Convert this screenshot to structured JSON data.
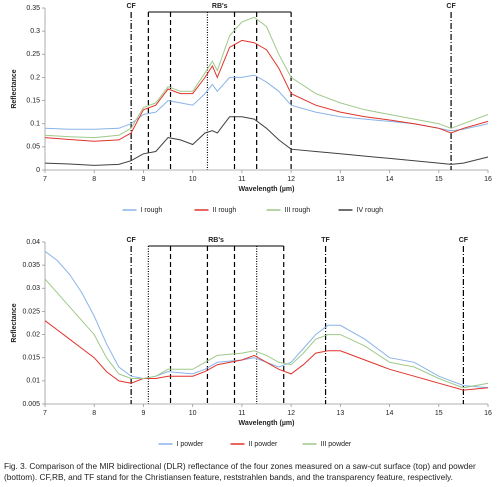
{
  "chart_data": [
    {
      "type": "line",
      "xlabel": "Wavelength (µm)",
      "ylabel": "Reflectance",
      "x": [
        7,
        7.5,
        8,
        8.5,
        8.75,
        9,
        9.25,
        9.5,
        9.75,
        10,
        10.25,
        10.4,
        10.5,
        10.75,
        11,
        11.25,
        11.5,
        11.75,
        12,
        12.5,
        13,
        13.5,
        14,
        14.5,
        15,
        15.25,
        15.5,
        16
      ],
      "xlim": [
        7,
        16
      ],
      "xticks": [
        7,
        8,
        9,
        10,
        11,
        12,
        13,
        14,
        15,
        16
      ],
      "ylim": [
        0,
        0.35
      ],
      "yticks": [
        0,
        0.05,
        0.1,
        0.15,
        0.2,
        0.25,
        0.3,
        0.35
      ],
      "series": [
        {
          "name": "I rough",
          "color": "#8ab4e8",
          "values": [
            0.09,
            0.088,
            0.088,
            0.09,
            0.1,
            0.12,
            0.125,
            0.15,
            0.145,
            0.14,
            0.165,
            0.185,
            0.17,
            0.2,
            0.2,
            0.205,
            0.19,
            0.17,
            0.14,
            0.125,
            0.115,
            0.11,
            0.105,
            0.1,
            0.09,
            0.085,
            0.088,
            0.1
          ]
        },
        {
          "name": "II rough",
          "color": "#e0342a",
          "values": [
            0.07,
            0.066,
            0.062,
            0.065,
            0.08,
            0.13,
            0.14,
            0.175,
            0.165,
            0.165,
            0.2,
            0.225,
            0.2,
            0.265,
            0.28,
            0.275,
            0.26,
            0.22,
            0.165,
            0.14,
            0.125,
            0.115,
            0.108,
            0.1,
            0.09,
            0.08,
            0.09,
            0.105
          ]
        },
        {
          "name": "III rough",
          "color": "#9fc98a",
          "values": [
            0.075,
            0.072,
            0.07,
            0.075,
            0.09,
            0.135,
            0.145,
            0.18,
            0.17,
            0.17,
            0.21,
            0.235,
            0.215,
            0.29,
            0.32,
            0.33,
            0.31,
            0.25,
            0.2,
            0.165,
            0.145,
            0.13,
            0.12,
            0.11,
            0.1,
            0.09,
            0.1,
            0.12
          ]
        },
        {
          "name": "IV rough",
          "color": "#404040",
          "values": [
            0.015,
            0.013,
            0.01,
            0.012,
            0.02,
            0.035,
            0.04,
            0.07,
            0.065,
            0.055,
            0.08,
            0.085,
            0.08,
            0.115,
            0.115,
            0.11,
            0.09,
            0.065,
            0.045,
            0.04,
            0.035,
            0.03,
            0.025,
            0.02,
            0.015,
            0.012,
            0.015,
            0.028
          ]
        }
      ],
      "vlines": [
        {
          "x": 8.75,
          "style": "dashdot"
        },
        {
          "x": 9.1,
          "style": "dashed"
        },
        {
          "x": 9.55,
          "style": "dashed"
        },
        {
          "x": 10.3,
          "style": "dotted"
        },
        {
          "x": 10.85,
          "style": "dashed"
        },
        {
          "x": 11.3,
          "style": "dashed"
        },
        {
          "x": 12,
          "style": "dashed"
        },
        {
          "x": 15.25,
          "style": "dashdot"
        }
      ],
      "annotations": [
        {
          "text": "CF",
          "x": 8.75
        },
        {
          "text": "RB's",
          "x": [
            9.1,
            12
          ]
        },
        {
          "text": "CF",
          "x": 15.25
        }
      ]
    },
    {
      "type": "line",
      "xlabel": "Wavelength (µm)",
      "ylabel": "Reflectance",
      "x": [
        7,
        7.25,
        7.5,
        7.75,
        8,
        8.25,
        8.5,
        8.75,
        9,
        9.25,
        9.5,
        10,
        10.25,
        10.5,
        11,
        11.25,
        11.5,
        11.75,
        12,
        12.25,
        12.5,
        12.75,
        13,
        13.5,
        14,
        14.5,
        15,
        15.5,
        16
      ],
      "xlim": [
        7,
        16
      ],
      "xticks": [
        7,
        8,
        9,
        10,
        11,
        12,
        13,
        14,
        15,
        16
      ],
      "ylim": [
        0.005,
        0.04
      ],
      "yticks": [
        0.005,
        0.01,
        0.015,
        0.02,
        0.025,
        0.03,
        0.035,
        0.04
      ],
      "series": [
        {
          "name": "I powder",
          "color": "#8ab4e8",
          "values": [
            0.038,
            0.036,
            0.033,
            0.029,
            0.024,
            0.018,
            0.013,
            0.011,
            0.0105,
            0.011,
            0.012,
            0.0115,
            0.0125,
            0.014,
            0.0145,
            0.015,
            0.014,
            0.013,
            0.014,
            0.017,
            0.02,
            0.022,
            0.022,
            0.019,
            0.015,
            0.014,
            0.011,
            0.009,
            0.0085
          ]
        },
        {
          "name": "II powder",
          "color": "#e0342a",
          "values": [
            0.023,
            0.021,
            0.019,
            0.017,
            0.015,
            0.012,
            0.01,
            0.0095,
            0.0105,
            0.0105,
            0.011,
            0.011,
            0.012,
            0.0135,
            0.0145,
            0.0155,
            0.014,
            0.0125,
            0.0115,
            0.0135,
            0.016,
            0.0165,
            0.0165,
            0.0145,
            0.0125,
            0.011,
            0.0095,
            0.008,
            0.0085
          ]
        },
        {
          "name": "III powder",
          "color": "#9fc98a",
          "values": [
            0.032,
            0.029,
            0.026,
            0.023,
            0.02,
            0.015,
            0.0115,
            0.0105,
            0.0105,
            0.011,
            0.0125,
            0.0125,
            0.014,
            0.0155,
            0.016,
            0.0165,
            0.0155,
            0.014,
            0.0135,
            0.016,
            0.019,
            0.02,
            0.02,
            0.0175,
            0.014,
            0.013,
            0.0105,
            0.0085,
            0.0095
          ]
        }
      ],
      "vlines": [
        {
          "x": 8.75,
          "style": "dashdot"
        },
        {
          "x": 9.1,
          "style": "dotted"
        },
        {
          "x": 9.55,
          "style": "dashed"
        },
        {
          "x": 10.3,
          "style": "dashed"
        },
        {
          "x": 10.85,
          "style": "dashed"
        },
        {
          "x": 11.3,
          "style": "dotted"
        },
        {
          "x": 11.85,
          "style": "dashed"
        },
        {
          "x": 12.7,
          "style": "dashdot"
        },
        {
          "x": 15.5,
          "style": "dashdot"
        }
      ],
      "annotations": [
        {
          "text": "CF",
          "x": 8.75
        },
        {
          "text": "RB's",
          "x": [
            9.1,
            11.85
          ]
        },
        {
          "text": "TF",
          "x": 12.7
        },
        {
          "text": "CF",
          "x": 15.5
        }
      ]
    }
  ],
  "caption": "Fig. 3. Comparison of the MIR bidirectional (DLR) reflectance of the four zones measured on a saw-cut surface (top) and powder (bottom). CF,RB, and TF stand for the Christiansen feature, reststrahlen bands, and the transparency feature, respectively."
}
